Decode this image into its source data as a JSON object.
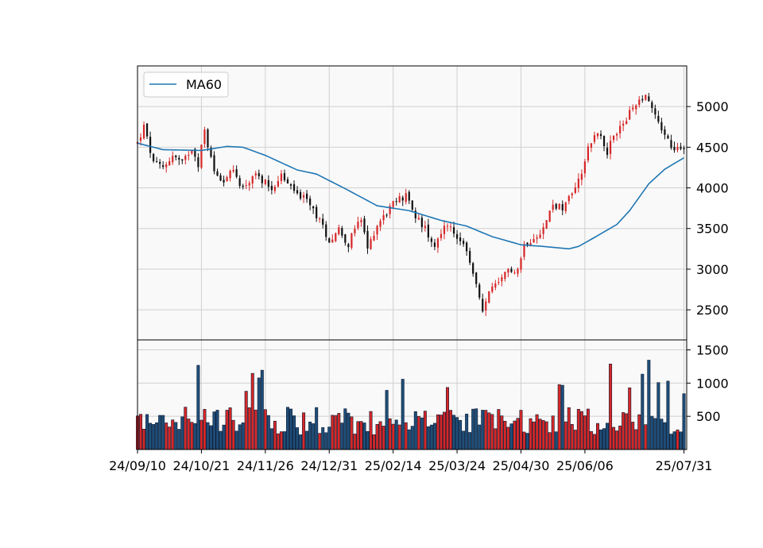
{
  "chart_data": {
    "type": "candlestick",
    "legend": {
      "entries": [
        "MA60"
      ],
      "placement": "top-left"
    },
    "grid": true,
    "colors": {
      "up": "#d62728",
      "down": "#111111",
      "ma": "#1f77b4",
      "vol_up": "#d62728",
      "vol_down": "#1f4e79",
      "panel_bg": "#f9f9f9",
      "grid": "#d0d0d0"
    },
    "price_axis": {
      "ticks": [
        2500,
        3000,
        3500,
        4000,
        4500,
        5000
      ],
      "labels": [
        "2500",
        "3000",
        "3500",
        "4000",
        "4500",
        "5000"
      ],
      "ylim": [
        2130,
        5500
      ],
      "side": "right"
    },
    "volume_axis": {
      "ticks": [
        500,
        1000,
        1500
      ],
      "labels": [
        "500",
        "1000",
        "1500"
      ],
      "ylim": [
        0,
        1650
      ],
      "side": "right"
    },
    "x_ticks": [
      {
        "label": "24/09/10",
        "index": 0
      },
      {
        "label": "24/10/21",
        "index": 20
      },
      {
        "label": "24/11/26",
        "index": 40
      },
      {
        "label": "24/12/31",
        "index": 60
      },
      {
        "label": "25/02/14",
        "index": 80
      },
      {
        "label": "25/03/24",
        "index": 100
      },
      {
        "label": "25/04/30",
        "index": 120
      },
      {
        "label": "25/06/06",
        "index": 140
      },
      {
        "label": "25/07/31",
        "index": 171
      }
    ],
    "n_bars": 172,
    "close_anchors": [
      [
        0,
        4550
      ],
      [
        2,
        4750
      ],
      [
        5,
        4300
      ],
      [
        8,
        4250
      ],
      [
        11,
        4400
      ],
      [
        14,
        4300
      ],
      [
        17,
        4500
      ],
      [
        19,
        4300
      ],
      [
        21,
        4700
      ],
      [
        24,
        4200
      ],
      [
        27,
        4100
      ],
      [
        30,
        4200
      ],
      [
        33,
        4000
      ],
      [
        36,
        4150
      ],
      [
        39,
        4100
      ],
      [
        42,
        4000
      ],
      [
        45,
        4150
      ],
      [
        48,
        4000
      ],
      [
        51,
        3900
      ],
      [
        54,
        3800
      ],
      [
        57,
        3600
      ],
      [
        60,
        3350
      ],
      [
        63,
        3500
      ],
      [
        66,
        3300
      ],
      [
        68,
        3500
      ],
      [
        70,
        3600
      ],
      [
        72,
        3250
      ],
      [
        75,
        3550
      ],
      [
        78,
        3700
      ],
      [
        81,
        3850
      ],
      [
        84,
        3900
      ],
      [
        87,
        3650
      ],
      [
        90,
        3500
      ],
      [
        93,
        3300
      ],
      [
        96,
        3550
      ],
      [
        99,
        3450
      ],
      [
        101,
        3350
      ],
      [
        104,
        3100
      ],
      [
        106,
        2800
      ],
      [
        108,
        2450
      ],
      [
        110,
        2750
      ],
      [
        113,
        2800
      ],
      [
        116,
        3000
      ],
      [
        119,
        3000
      ],
      [
        121,
        3300
      ],
      [
        124,
        3400
      ],
      [
        127,
        3500
      ],
      [
        130,
        3800
      ],
      [
        133,
        3750
      ],
      [
        136,
        3950
      ],
      [
        139,
        4200
      ],
      [
        141,
        4500
      ],
      [
        144,
        4700
      ],
      [
        147,
        4450
      ],
      [
        150,
        4700
      ],
      [
        153,
        4850
      ],
      [
        156,
        5050
      ],
      [
        159,
        5150
      ],
      [
        162,
        4900
      ],
      [
        165,
        4650
      ],
      [
        168,
        4450
      ],
      [
        171,
        4500
      ]
    ],
    "ma_anchors": [
      [
        0,
        4550
      ],
      [
        8,
        4470
      ],
      [
        20,
        4460
      ],
      [
        28,
        4510
      ],
      [
        33,
        4500
      ],
      [
        40,
        4400
      ],
      [
        50,
        4220
      ],
      [
        56,
        4170
      ],
      [
        65,
        3990
      ],
      [
        75,
        3780
      ],
      [
        85,
        3720
      ],
      [
        95,
        3600
      ],
      [
        103,
        3530
      ],
      [
        111,
        3400
      ],
      [
        120,
        3300
      ],
      [
        127,
        3280
      ],
      [
        135,
        3250
      ],
      [
        138,
        3280
      ],
      [
        143,
        3390
      ],
      [
        150,
        3550
      ],
      [
        154,
        3720
      ],
      [
        160,
        4050
      ],
      [
        165,
        4230
      ],
      [
        171,
        4370
      ]
    ]
  }
}
